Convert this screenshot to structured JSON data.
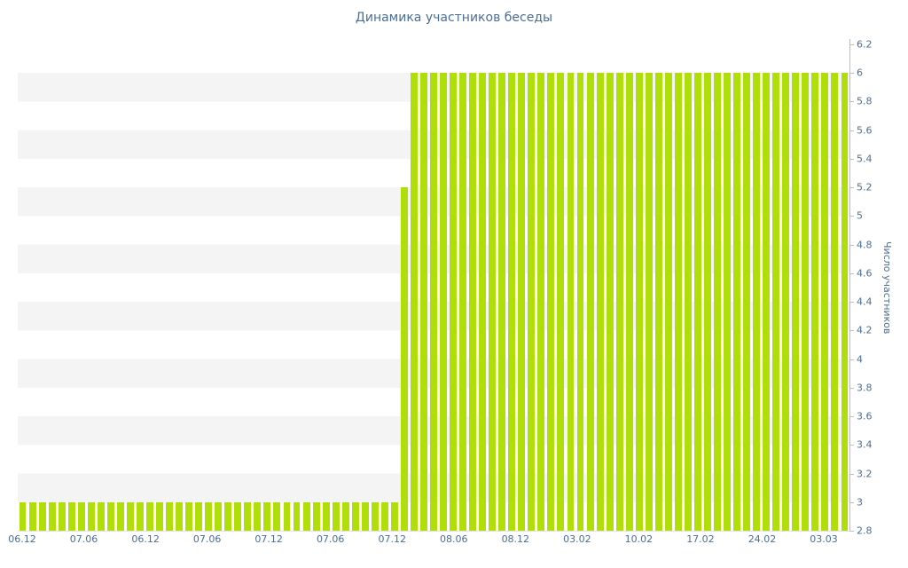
{
  "colors": {
    "bar": "#b0de09",
    "stripe": "#f4f4f4",
    "axis_line": "#bdbdbd",
    "text": "#4a6e96",
    "background": "#ffffff"
  },
  "chart_data": {
    "type": "bar",
    "title": "Динамика участников беседы",
    "xlabel": "",
    "ylabel": "Число участников",
    "ylim": [
      2.8,
      6.2
    ],
    "y_tick_labels": [
      "6.2",
      "6",
      "5.8",
      "5.6",
      "5.4",
      "5.2",
      "5",
      "4.8",
      "4.6",
      "4.4",
      "4.2",
      "4",
      "3.8",
      "3.6",
      "3.4",
      "3.2",
      "3",
      "2.8"
    ],
    "x_tick_labels": [
      "06.12",
      "07.06",
      "06.12",
      "07.06",
      "07.12",
      "07.06",
      "07.12",
      "08.06",
      "08.12",
      "03.02",
      "10.02",
      "17.02",
      "24.02",
      "03.03"
    ],
    "grid": "alternating horizontal bands, 0.2 units per band",
    "legend": null,
    "y_axis_position": "right",
    "values": [
      3,
      3,
      3,
      3,
      3,
      3,
      3,
      3,
      3,
      3,
      3,
      3,
      3,
      3,
      3,
      3,
      3,
      3,
      3,
      3,
      3,
      3,
      3,
      3,
      3,
      3,
      3,
      3,
      3,
      3,
      3,
      3,
      3,
      3,
      3,
      3,
      3,
      3,
      3,
      5.2,
      6,
      6,
      6,
      6,
      6,
      6,
      6,
      6,
      6,
      6,
      6,
      6,
      6,
      6,
      6,
      6,
      6,
      6,
      6,
      6,
      6,
      6,
      6,
      6,
      6,
      6,
      6,
      6,
      6,
      6,
      6,
      6,
      6,
      6,
      6,
      6,
      6,
      6,
      6,
      6,
      6,
      6,
      6,
      6,
      6
    ]
  }
}
